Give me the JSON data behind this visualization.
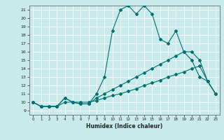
{
  "title": "",
  "xlabel": "Humidex (Indice chaleur)",
  "ylabel": "",
  "bg_color": "#c8eaea",
  "grid_color": "#b0d8d8",
  "line_color": "#007070",
  "xlim": [
    -0.5,
    23.5
  ],
  "ylim": [
    8.5,
    21.5
  ],
  "xticks": [
    0,
    1,
    2,
    3,
    4,
    5,
    6,
    7,
    8,
    9,
    10,
    11,
    12,
    13,
    14,
    15,
    16,
    17,
    18,
    19,
    20,
    21,
    22,
    23
  ],
  "yticks": [
    9,
    10,
    11,
    12,
    13,
    14,
    15,
    16,
    17,
    18,
    19,
    20,
    21
  ],
  "line1_x": [
    0,
    1,
    2,
    3,
    4,
    5,
    6,
    7,
    8,
    9,
    10,
    11,
    12,
    13,
    14,
    15,
    16,
    17,
    18,
    19,
    20,
    21,
    22,
    23
  ],
  "line1_y": [
    10,
    9.5,
    9.5,
    9.5,
    10.5,
    10,
    9.8,
    9.8,
    11,
    13,
    18.5,
    21,
    21.5,
    20.5,
    21.5,
    20.5,
    17.5,
    17,
    18.5,
    16,
    15,
    13,
    12.5,
    11
  ],
  "line2_x": [
    0,
    1,
    2,
    3,
    4,
    5,
    6,
    7,
    8,
    9,
    10,
    11,
    12,
    13,
    14,
    15,
    16,
    17,
    18,
    19,
    20,
    21,
    22,
    23
  ],
  "line2_y": [
    10,
    9.5,
    9.5,
    9.5,
    10.5,
    10,
    9.8,
    9.8,
    10.5,
    11,
    11.5,
    12,
    12.5,
    13,
    13.5,
    14,
    14.5,
    15,
    15.5,
    16,
    16,
    15,
    12.5,
    11
  ],
  "line3_x": [
    0,
    1,
    2,
    3,
    4,
    5,
    6,
    7,
    8,
    9,
    10,
    11,
    12,
    13,
    14,
    15,
    16,
    17,
    18,
    19,
    20,
    21,
    22,
    23
  ],
  "line3_y": [
    10,
    9.5,
    9.5,
    9.5,
    10,
    10,
    10,
    10,
    10.2,
    10.5,
    10.8,
    11,
    11.3,
    11.6,
    12,
    12.3,
    12.6,
    13,
    13.3,
    13.6,
    14,
    14.3,
    12.5,
    11
  ]
}
